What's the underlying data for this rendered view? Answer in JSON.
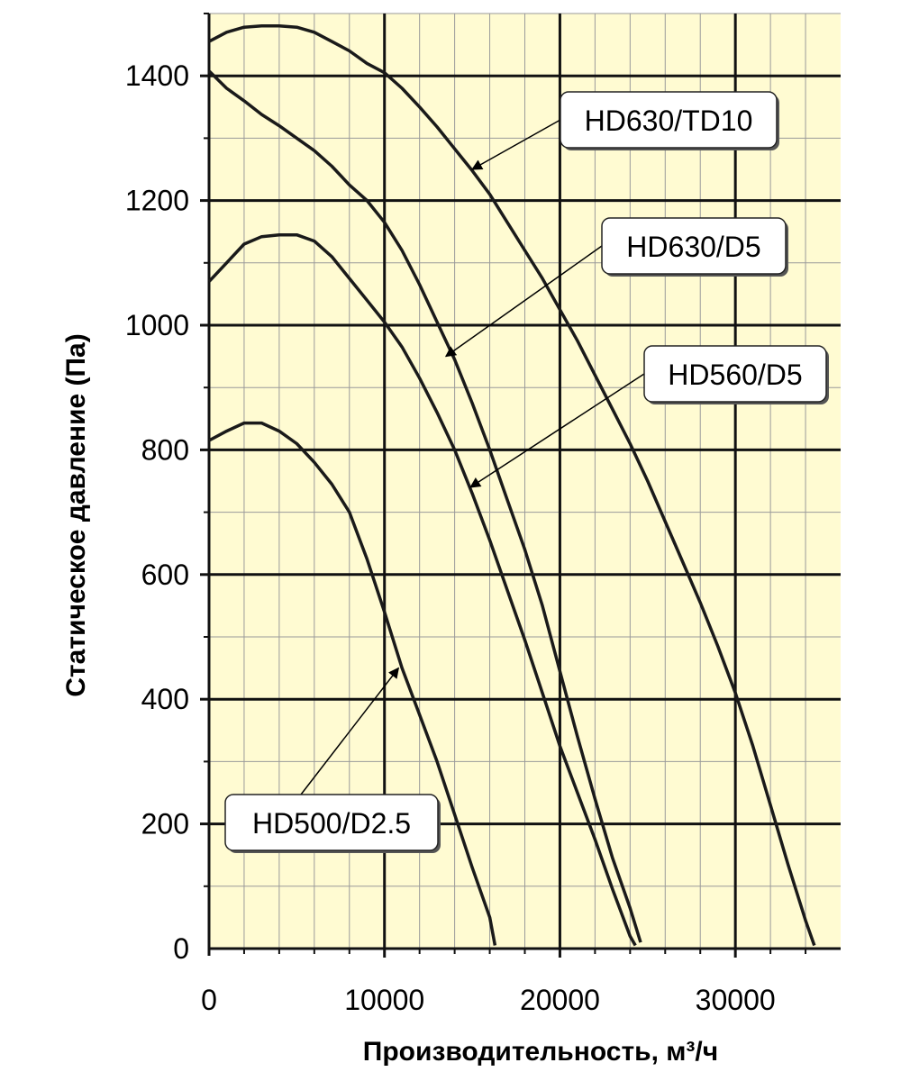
{
  "chart_data": {
    "type": "line",
    "title": "",
    "xlabel": "Производительность, м³/ч",
    "ylabel": "Статическое давление (Па)",
    "xlim": [
      0,
      36000
    ],
    "ylim": [
      0,
      1500
    ],
    "x_ticks": [
      0,
      10000,
      20000,
      30000
    ],
    "y_ticks": [
      0,
      200,
      400,
      600,
      800,
      1000,
      1200,
      1400
    ],
    "grid": true,
    "background_color": "#fffbd2",
    "line_color": "#1a1a1a",
    "series": [
      {
        "name": "HD630/TD10",
        "points": [
          [
            0,
            1455
          ],
          [
            1000,
            1470
          ],
          [
            2000,
            1478
          ],
          [
            3000,
            1480
          ],
          [
            4000,
            1480
          ],
          [
            5000,
            1478
          ],
          [
            6000,
            1470
          ],
          [
            7000,
            1455
          ],
          [
            8000,
            1440
          ],
          [
            9000,
            1420
          ],
          [
            10000,
            1405
          ],
          [
            11000,
            1380
          ],
          [
            12000,
            1350
          ],
          [
            13000,
            1318
          ],
          [
            14000,
            1283
          ],
          [
            15000,
            1248
          ],
          [
            16000,
            1210
          ],
          [
            17000,
            1165
          ],
          [
            18000,
            1120
          ],
          [
            19000,
            1075
          ],
          [
            20000,
            1025
          ],
          [
            21000,
            975
          ],
          [
            22000,
            920
          ],
          [
            23000,
            865
          ],
          [
            24000,
            810
          ],
          [
            25000,
            750
          ],
          [
            26000,
            685
          ],
          [
            27000,
            620
          ],
          [
            28000,
            555
          ],
          [
            29000,
            485
          ],
          [
            30000,
            410
          ],
          [
            31000,
            325
          ],
          [
            32000,
            230
          ],
          [
            33000,
            135
          ],
          [
            34000,
            45
          ],
          [
            34500,
            5
          ]
        ]
      },
      {
        "name": "HD630/D5",
        "points": [
          [
            0,
            1408
          ],
          [
            1000,
            1380
          ],
          [
            2000,
            1360
          ],
          [
            3000,
            1338
          ],
          [
            4000,
            1320
          ],
          [
            5000,
            1300
          ],
          [
            6000,
            1280
          ],
          [
            7000,
            1255
          ],
          [
            8000,
            1225
          ],
          [
            9000,
            1200
          ],
          [
            10000,
            1165
          ],
          [
            11000,
            1120
          ],
          [
            12000,
            1065
          ],
          [
            13000,
            1005
          ],
          [
            14000,
            945
          ],
          [
            15000,
            875
          ],
          [
            16000,
            800
          ],
          [
            17000,
            720
          ],
          [
            18000,
            640
          ],
          [
            19000,
            550
          ],
          [
            20000,
            445
          ],
          [
            21000,
            340
          ],
          [
            22000,
            240
          ],
          [
            23000,
            145
          ],
          [
            24000,
            65
          ],
          [
            24600,
            10
          ]
        ]
      },
      {
        "name": "HD560/D5",
        "points": [
          [
            0,
            1070
          ],
          [
            1000,
            1100
          ],
          [
            2000,
            1130
          ],
          [
            3000,
            1142
          ],
          [
            4000,
            1145
          ],
          [
            5000,
            1145
          ],
          [
            6000,
            1135
          ],
          [
            7000,
            1110
          ],
          [
            8000,
            1075
          ],
          [
            9000,
            1040
          ],
          [
            10000,
            1005
          ],
          [
            11000,
            965
          ],
          [
            12000,
            915
          ],
          [
            13000,
            860
          ],
          [
            14000,
            800
          ],
          [
            15000,
            730
          ],
          [
            16000,
            655
          ],
          [
            17000,
            575
          ],
          [
            18000,
            495
          ],
          [
            19000,
            410
          ],
          [
            20000,
            325
          ],
          [
            21000,
            250
          ],
          [
            22000,
            175
          ],
          [
            23000,
            95
          ],
          [
            24000,
            20
          ],
          [
            24300,
            5
          ]
        ]
      },
      {
        "name": "HD500/D2.5",
        "points": [
          [
            0,
            815
          ],
          [
            1000,
            830
          ],
          [
            2000,
            843
          ],
          [
            3000,
            843
          ],
          [
            4000,
            830
          ],
          [
            5000,
            810
          ],
          [
            6000,
            780
          ],
          [
            7000,
            745
          ],
          [
            8000,
            700
          ],
          [
            9000,
            625
          ],
          [
            10000,
            540
          ],
          [
            11000,
            450
          ],
          [
            12000,
            375
          ],
          [
            13000,
            300
          ],
          [
            14000,
            215
          ],
          [
            15000,
            130
          ],
          [
            16000,
            50
          ],
          [
            16300,
            5
          ]
        ]
      }
    ],
    "annotations": [
      {
        "text": "HD630/TD10",
        "x": 15000,
        "y": 1250,
        "anchor": "right"
      },
      {
        "text": "HD630/D5",
        "x": 13500,
        "y": 950,
        "anchor": "right"
      },
      {
        "text": "HD560/D5",
        "x": 14900,
        "y": 740,
        "anchor": "right"
      },
      {
        "text": "HD500/D2.5",
        "x": 10800,
        "y": 450,
        "anchor": "left"
      }
    ]
  }
}
